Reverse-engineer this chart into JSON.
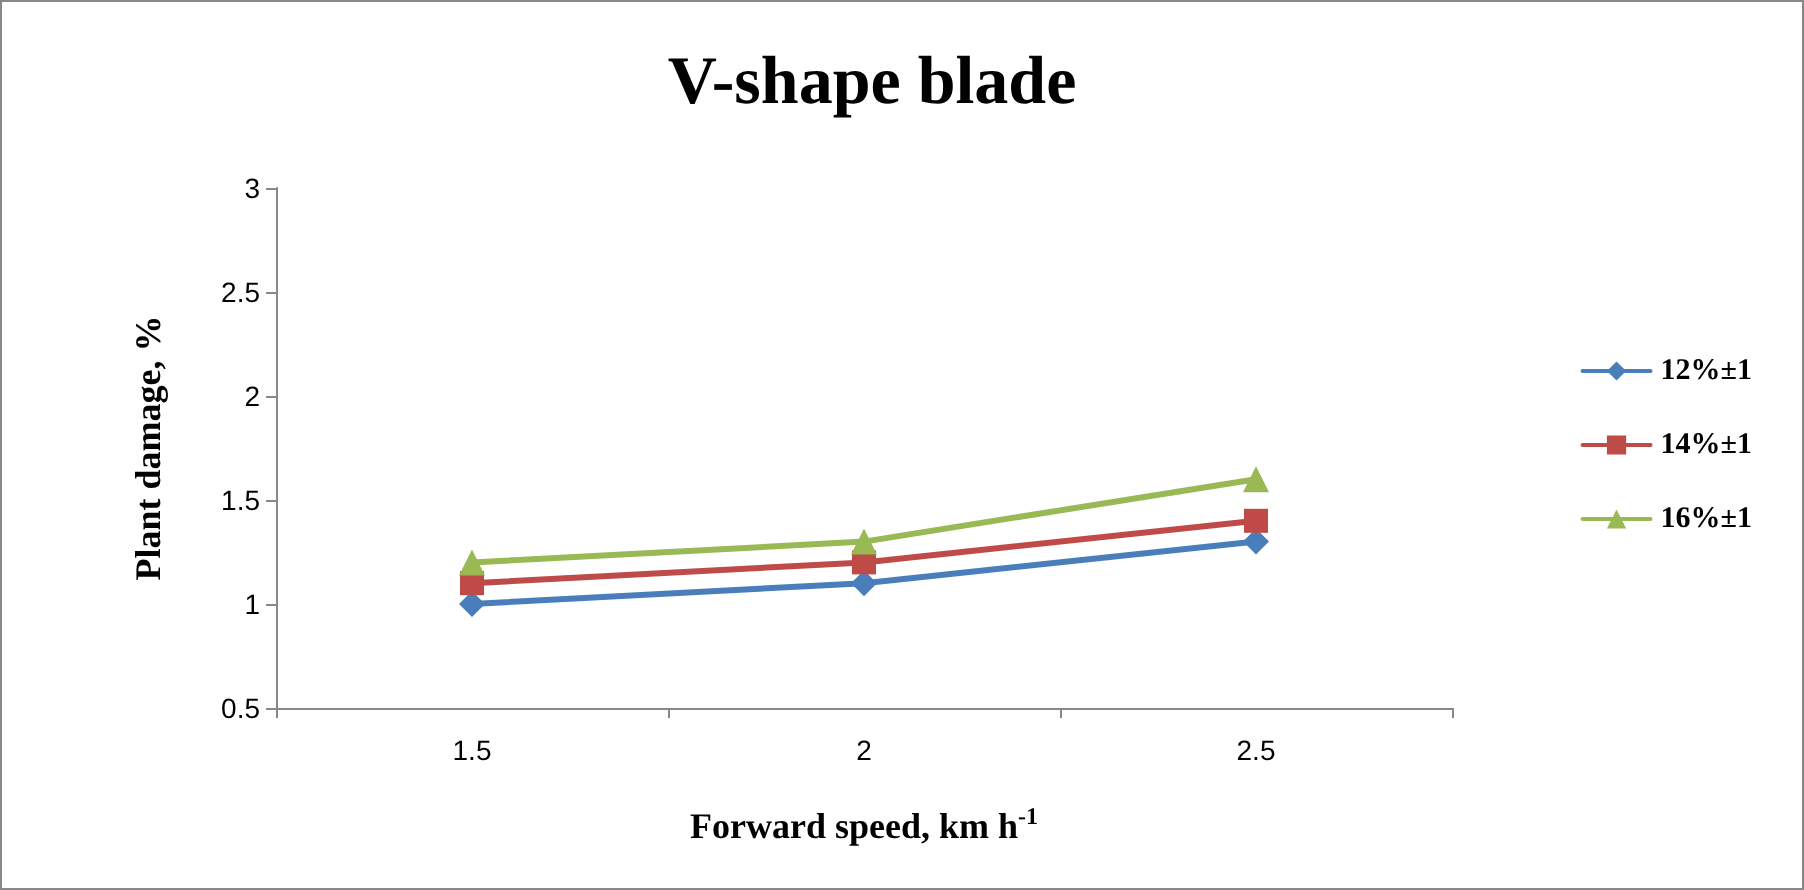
{
  "chart_data": {
    "type": "line",
    "title": "V-shape blade",
    "xlabel": "Forward speed, km h$^{-1}$",
    "ylabel": "Plant damage, %",
    "categories": [
      "1.5",
      "2",
      "2.5"
    ],
    "series": [
      {
        "name": "12%±1",
        "color": "#4a7ebb",
        "marker": "diamond",
        "values": [
          1.0,
          1.1,
          1.3
        ]
      },
      {
        "name": "14%±1",
        "color": "#be4b48",
        "marker": "square",
        "values": [
          1.1,
          1.2,
          1.4
        ]
      },
      {
        "name": "16%±1",
        "color": "#98b954",
        "marker": "triangle",
        "values": [
          1.2,
          1.3,
          1.6
        ]
      }
    ],
    "ylim": [
      0.5,
      3
    ],
    "yticks": [
      0.5,
      1,
      1.5,
      2,
      2.5,
      3
    ],
    "grid": false,
    "legend": "right",
    "line_style": "solid"
  }
}
